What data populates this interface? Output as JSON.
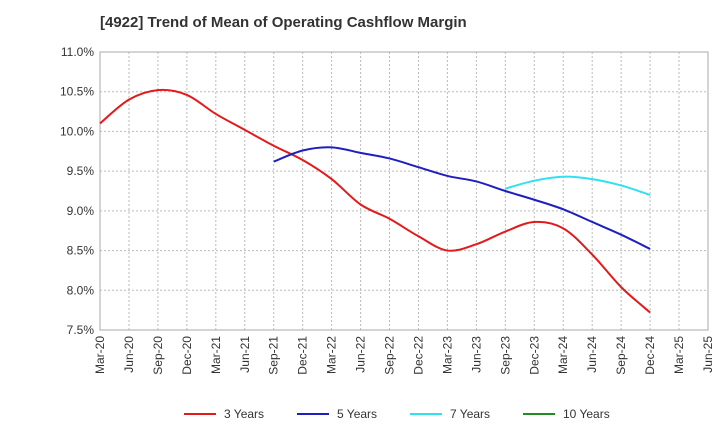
{
  "chart_data": {
    "type": "line",
    "title": "[4922]  Trend of Mean of Operating Cashflow Margin",
    "xlabel": "",
    "ylabel": "",
    "categories": [
      "Mar-20",
      "Jun-20",
      "Sep-20",
      "Dec-20",
      "Mar-21",
      "Jun-21",
      "Sep-21",
      "Dec-21",
      "Mar-22",
      "Jun-22",
      "Sep-22",
      "Dec-22",
      "Mar-23",
      "Jun-23",
      "Sep-23",
      "Dec-23",
      "Mar-24",
      "Jun-24",
      "Sep-24",
      "Dec-24",
      "Mar-25",
      "Jun-25"
    ],
    "y_ticks": [
      "7.5%",
      "8.0%",
      "8.5%",
      "9.0%",
      "9.5%",
      "10.0%",
      "10.5%",
      "11.0%"
    ],
    "ylim": [
      7.5,
      11.0
    ],
    "grid": true,
    "legend_position": "bottom",
    "series": [
      {
        "name": "3 Years",
        "color": "#e31a1c",
        "values": [
          10.1,
          10.4,
          10.52,
          10.46,
          10.22,
          10.02,
          9.82,
          9.64,
          9.4,
          9.08,
          8.9,
          8.68,
          8.5,
          8.58,
          8.74,
          8.86,
          8.78,
          8.45,
          8.04,
          7.72,
          null,
          null
        ]
      },
      {
        "name": "5 Years",
        "color": "#1f1fbf",
        "values": [
          null,
          null,
          null,
          null,
          null,
          null,
          9.62,
          9.76,
          9.8,
          9.73,
          9.66,
          9.55,
          9.44,
          9.37,
          9.25,
          9.14,
          9.02,
          8.86,
          8.7,
          8.52,
          null,
          null
        ]
      },
      {
        "name": "7 Years",
        "color": "#33e0f0",
        "values": [
          null,
          null,
          null,
          null,
          null,
          null,
          null,
          null,
          null,
          null,
          null,
          null,
          null,
          null,
          9.28,
          9.38,
          9.43,
          9.4,
          9.32,
          9.2,
          null,
          null
        ]
      },
      {
        "name": "10 Years",
        "color": "#228b22",
        "values": [
          null,
          null,
          null,
          null,
          null,
          null,
          null,
          null,
          null,
          null,
          null,
          null,
          null,
          null,
          null,
          null,
          null,
          null,
          null,
          null,
          null,
          null
        ]
      }
    ]
  }
}
